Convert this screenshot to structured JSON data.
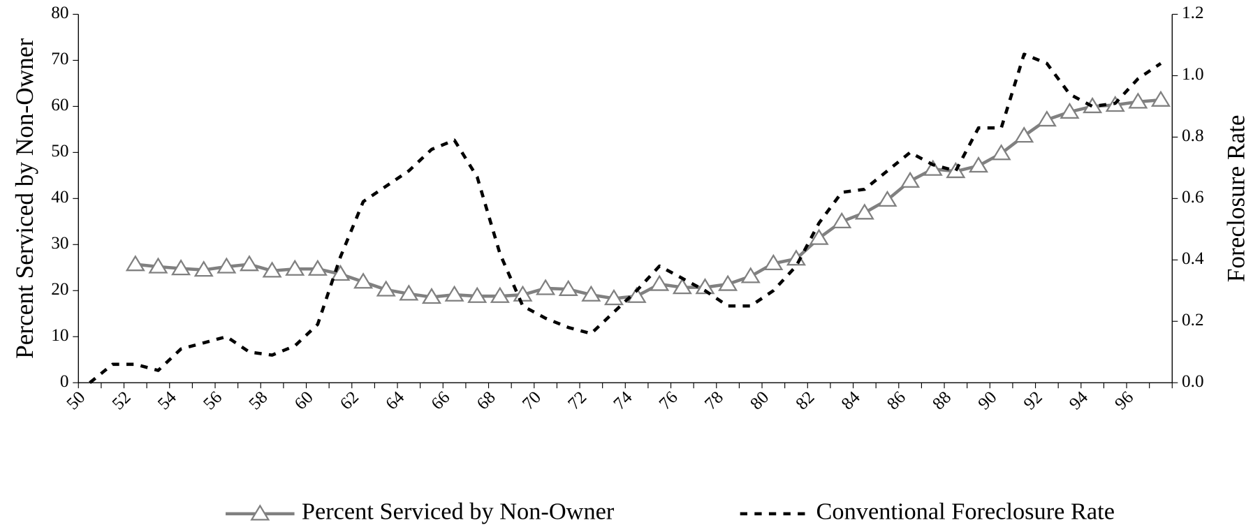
{
  "chart_data": {
    "type": "line",
    "y_label": "Percent Serviced by Non-Owner",
    "y2_label": "Foreclosure Rate",
    "categories": [
      "50",
      null,
      "52",
      null,
      "54",
      null,
      "56",
      null,
      "58",
      null,
      "60",
      null,
      "62",
      null,
      "64",
      null,
      "66",
      null,
      "68",
      null,
      "70",
      null,
      "72",
      null,
      "74",
      null,
      "76",
      null,
      "78",
      null,
      "80",
      null,
      "82",
      null,
      "84",
      null,
      "86",
      null,
      "88",
      null,
      "90",
      null,
      "92",
      null,
      "94",
      null,
      "96",
      null
    ],
    "series": [
      {
        "name": "Percent Serviced by Non-Owner",
        "color": "#808080",
        "axis": "y",
        "marker": "triangle",
        "values": [
          null,
          null,
          25.7,
          25.2,
          24.8,
          24.5,
          25.2,
          25.7,
          24.3,
          24.7,
          24.7,
          23.6,
          21.9,
          20.2,
          19.3,
          18.6,
          19.1,
          18.8,
          18.8,
          19.1,
          20.5,
          20.3,
          19.1,
          18.3,
          18.8,
          21.4,
          20.7,
          20.7,
          21.4,
          23.1,
          25.9,
          26.9,
          31.4,
          35.0,
          36.9,
          39.7,
          43.8,
          46.4,
          45.9,
          47.1,
          49.8,
          53.6,
          57.1,
          58.8,
          60.0,
          60.3,
          61.0,
          61.4
        ]
      },
      {
        "name": "Conventional Foreclosure Rate",
        "color": "#000000",
        "axis": "y2",
        "dashed": true,
        "values": [
          0.0,
          0.06,
          0.06,
          0.04,
          0.11,
          0.13,
          0.15,
          0.1,
          0.09,
          0.12,
          0.19,
          0.41,
          0.59,
          0.64,
          0.69,
          0.76,
          0.79,
          0.67,
          0.42,
          0.25,
          0.21,
          0.18,
          0.16,
          0.23,
          0.3,
          0.38,
          0.34,
          0.3,
          0.25,
          0.25,
          0.3,
          0.38,
          0.52,
          0.62,
          0.63,
          0.69,
          0.75,
          0.71,
          0.69,
          0.83,
          0.83,
          1.07,
          1.04,
          0.94,
          0.9,
          0.91,
          0.99,
          1.04
        ]
      }
    ],
    "ylim": [
      0,
      80
    ],
    "yticks": [
      0,
      10,
      20,
      30,
      40,
      50,
      60,
      70,
      80
    ],
    "y2lim": [
      0,
      1.2
    ],
    "y2ticks": [
      {
        "value": 0,
        "label": "0.0"
      },
      {
        "value": 0.2,
        "label": "0.2"
      },
      {
        "value": 0.4,
        "label": "0.4"
      },
      {
        "value": 0.6,
        "label": "0.6"
      },
      {
        "value": 0.8,
        "label": "0.8"
      },
      {
        "value": 1.0,
        "label": "1.0"
      },
      {
        "value": 1.2,
        "label": "1.2"
      }
    ],
    "grid": false,
    "legend": "bottom"
  }
}
